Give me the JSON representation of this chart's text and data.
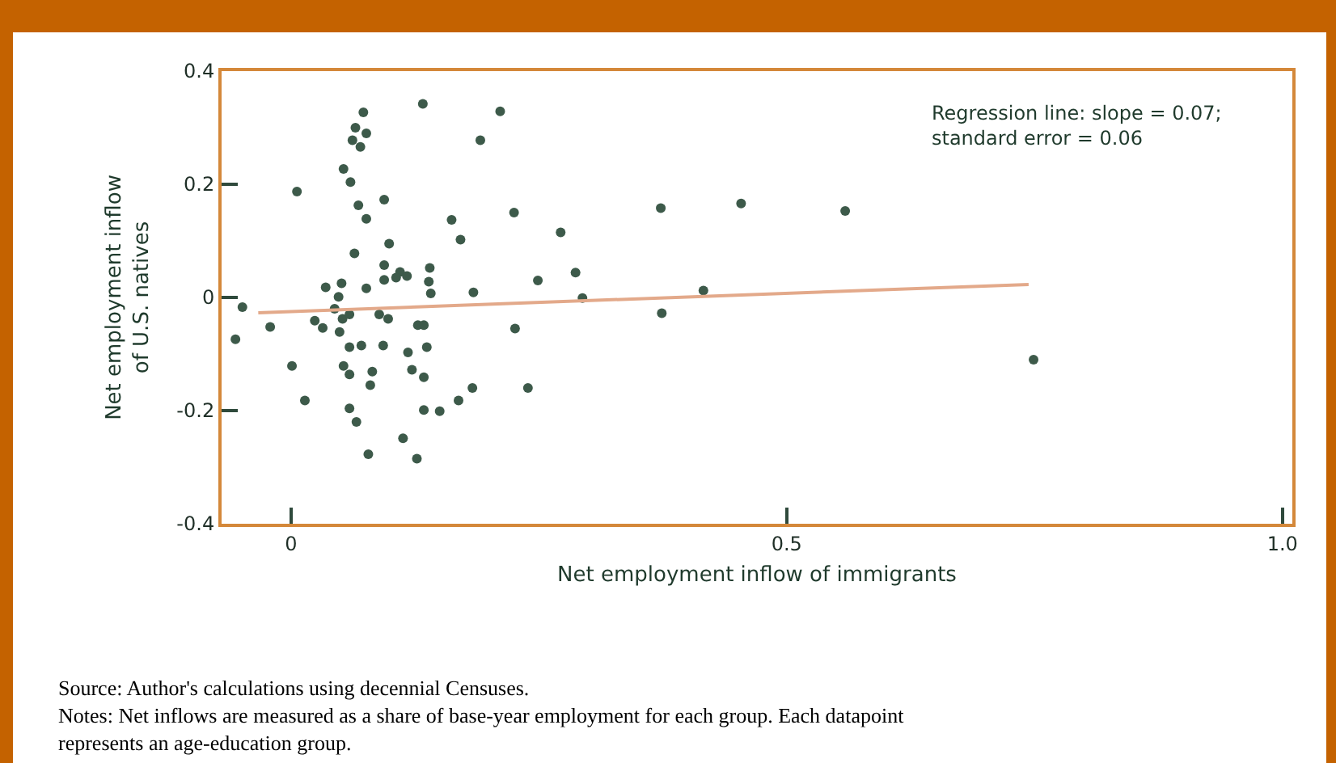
{
  "chart_data": {
    "type": "scatter",
    "xlabel": "Net employment inflow of immigrants",
    "ylabel": "Net employment inflow\nof U.S. natives",
    "grid": false,
    "xlim": [
      -0.07,
      1.01
    ],
    "xticks": [
      0,
      0.5,
      {
        "value": 1,
        "label": "1.0"
      }
    ],
    "ylim": [
      -0.4,
      0.4
    ],
    "yticks": [
      -0.4,
      -0.2,
      0,
      0.2,
      0.4
    ],
    "series": [
      {
        "marker": "circle",
        "color": "#3d5a4a",
        "x": [
          0.006,
          0.073,
          0.065,
          0.076,
          0.062,
          0.07,
          0.133,
          0.211,
          0.191,
          0.053,
          0.06,
          0.094,
          0.068,
          0.076,
          0.162,
          0.171,
          0.099,
          0.064,
          0.094,
          0.14,
          0.11,
          0.117,
          0.094,
          0.106,
          0.139,
          0.141,
          0.035,
          0.051,
          0.076,
          0.184,
          0.048,
          -0.049,
          -0.056,
          -0.021,
          0.024,
          0.032,
          0.044,
          0.052,
          0.049,
          0.059,
          0.089,
          0.098,
          0.128,
          0.134,
          0.059,
          0.071,
          0.093,
          0.118,
          0.137,
          0.001,
          0.053,
          0.059,
          0.082,
          0.122,
          0.134,
          0.08,
          0.183,
          0.169,
          0.014,
          0.059,
          0.134,
          0.15,
          0.066,
          0.113,
          0.078,
          0.127,
          0.225,
          0.373,
          0.454,
          0.559,
          0.272,
          0.249,
          0.287,
          0.294,
          0.416,
          0.374,
          0.226,
          0.239,
          0.749
        ],
        "values": [
          0.187,
          0.327,
          0.3,
          0.29,
          0.278,
          0.266,
          0.342,
          0.329,
          0.278,
          0.227,
          0.204,
          0.173,
          0.163,
          0.139,
          0.137,
          0.102,
          0.095,
          0.078,
          0.057,
          0.052,
          0.045,
          0.038,
          0.031,
          0.035,
          0.028,
          0.007,
          0.018,
          0.025,
          0.016,
          0.009,
          0.001,
          -0.017,
          -0.074,
          -0.052,
          -0.041,
          -0.054,
          -0.02,
          -0.038,
          -0.061,
          -0.03,
          -0.03,
          -0.038,
          -0.049,
          -0.049,
          -0.088,
          -0.085,
          -0.085,
          -0.097,
          -0.088,
          -0.121,
          -0.121,
          -0.136,
          -0.131,
          -0.128,
          -0.141,
          -0.155,
          -0.16,
          -0.182,
          -0.182,
          -0.196,
          -0.199,
          -0.201,
          -0.22,
          -0.249,
          -0.277,
          -0.285,
          0.15,
          0.158,
          0.166,
          0.153,
          0.115,
          0.03,
          0.044,
          -0.001,
          0.012,
          -0.028,
          -0.055,
          -0.16,
          -0.11
        ]
      },
      {
        "type": "line",
        "marker": "none",
        "color": "#e3a98a",
        "x": [
          -0.033,
          0.744
        ],
        "values": [
          -0.027,
          0.023
        ]
      }
    ],
    "annotations": [
      "Regression line: slope = 0.07;\nstandard error = 0.06",
      "Source: Author's calculations using decennial Censuses.",
      "Notes: Net inflows are measured as a share of base-year employment for each group. Each datapoint\nrepresents an age-education group."
    ]
  }
}
